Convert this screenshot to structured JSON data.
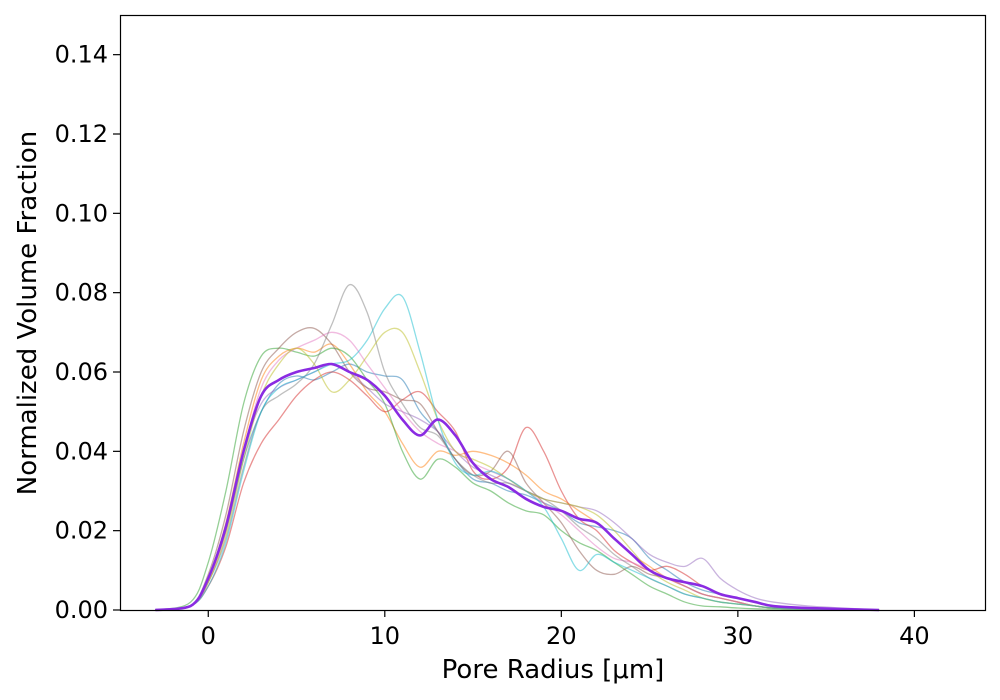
{
  "chart_data": {
    "type": "line",
    "title": "",
    "xlabel": "Pore Radius [μm]",
    "ylabel": "Normalized Volume Fraction",
    "xlim": [
      -5,
      44
    ],
    "ylim": [
      0,
      0.15
    ],
    "xticks": [
      0,
      10,
      20,
      30,
      40
    ],
    "yticks": [
      0.0,
      0.02,
      0.04,
      0.06,
      0.08,
      0.1,
      0.12,
      0.14
    ],
    "xtick_labels": [
      "0",
      "10",
      "20",
      "30",
      "40"
    ],
    "ytick_labels": [
      "0.00",
      "0.02",
      "0.04",
      "0.06",
      "0.08",
      "0.10",
      "0.12",
      "0.14"
    ],
    "grid": false,
    "legend": "none",
    "series": [
      {
        "color": "#1f77b4",
        "alpha": 0.5,
        "x": [
          -3,
          -1,
          0,
          1,
          2,
          3,
          4,
          5,
          6,
          7,
          8,
          9,
          10,
          11,
          12,
          13,
          14,
          15,
          16,
          17,
          18,
          19,
          20,
          21,
          22,
          23,
          24,
          25,
          26,
          27,
          28,
          29,
          30,
          31,
          32,
          34,
          38
        ],
        "y": [
          0,
          0.001,
          0.008,
          0.02,
          0.038,
          0.05,
          0.057,
          0.059,
          0.058,
          0.06,
          0.062,
          0.06,
          0.059,
          0.058,
          0.05,
          0.045,
          0.038,
          0.033,
          0.032,
          0.03,
          0.029,
          0.027,
          0.025,
          0.022,
          0.021,
          0.02,
          0.018,
          0.013,
          0.01,
          0.007,
          0.005,
          0.004,
          0.003,
          0.002,
          0.001,
          0.0005,
          0
        ]
      },
      {
        "color": "#ff7f0e",
        "alpha": 0.5,
        "x": [
          -3,
          -1,
          0,
          1,
          2,
          3,
          4,
          5,
          6,
          7,
          8,
          9,
          10,
          11,
          12,
          13,
          14,
          15,
          16,
          17,
          18,
          19,
          20,
          21,
          22,
          23,
          24,
          25,
          26,
          27,
          28,
          29,
          30,
          31,
          32,
          34,
          38
        ],
        "y": [
          0,
          0.001,
          0.008,
          0.022,
          0.042,
          0.058,
          0.064,
          0.066,
          0.065,
          0.067,
          0.062,
          0.055,
          0.05,
          0.042,
          0.036,
          0.04,
          0.039,
          0.04,
          0.039,
          0.037,
          0.034,
          0.03,
          0.028,
          0.025,
          0.022,
          0.018,
          0.014,
          0.011,
          0.008,
          0.006,
          0.004,
          0.003,
          0.002,
          0.001,
          0.0005,
          0.0002,
          0
        ]
      },
      {
        "color": "#2ca02c",
        "alpha": 0.5,
        "x": [
          -3,
          -1,
          0,
          1,
          2,
          3,
          4,
          5,
          6,
          7,
          8,
          9,
          10,
          11,
          12,
          13,
          14,
          15,
          16,
          17,
          18,
          19,
          20,
          21,
          22,
          23,
          24,
          25,
          26,
          27,
          28,
          29,
          30,
          31,
          32,
          34,
          38
        ],
        "y": [
          0,
          0.002,
          0.012,
          0.03,
          0.052,
          0.064,
          0.066,
          0.065,
          0.064,
          0.066,
          0.064,
          0.058,
          0.052,
          0.04,
          0.033,
          0.038,
          0.036,
          0.032,
          0.03,
          0.027,
          0.025,
          0.024,
          0.02,
          0.017,
          0.015,
          0.012,
          0.009,
          0.006,
          0.004,
          0.002,
          0.001,
          0.0008,
          0.0005,
          0.0003,
          0.0002,
          0.0001,
          0
        ]
      },
      {
        "color": "#d62728",
        "alpha": 0.5,
        "x": [
          -3,
          -1,
          0,
          1,
          2,
          3,
          4,
          5,
          6,
          7,
          8,
          9,
          10,
          11,
          12,
          13,
          14,
          15,
          16,
          17,
          18,
          19,
          20,
          21,
          22,
          23,
          24,
          25,
          26,
          27,
          28,
          29,
          30,
          31,
          32,
          34,
          38
        ],
        "y": [
          0,
          0.001,
          0.006,
          0.016,
          0.032,
          0.042,
          0.048,
          0.054,
          0.058,
          0.06,
          0.058,
          0.054,
          0.05,
          0.053,
          0.055,
          0.05,
          0.045,
          0.035,
          0.033,
          0.036,
          0.046,
          0.04,
          0.03,
          0.023,
          0.02,
          0.015,
          0.012,
          0.01,
          0.011,
          0.009,
          0.006,
          0.004,
          0.003,
          0.002,
          0.001,
          0.0005,
          0
        ]
      },
      {
        "color": "#9467bd",
        "alpha": 0.5,
        "x": [
          -3,
          -1,
          0,
          1,
          2,
          3,
          4,
          5,
          6,
          7,
          8,
          9,
          10,
          11,
          12,
          13,
          14,
          15,
          16,
          17,
          18,
          19,
          20,
          21,
          22,
          23,
          24,
          25,
          26,
          27,
          28,
          29,
          30,
          31,
          32,
          34,
          38
        ],
        "y": [
          0,
          0.001,
          0.008,
          0.02,
          0.04,
          0.052,
          0.056,
          0.058,
          0.06,
          0.062,
          0.06,
          0.056,
          0.052,
          0.05,
          0.048,
          0.045,
          0.04,
          0.036,
          0.034,
          0.032,
          0.03,
          0.028,
          0.027,
          0.026,
          0.025,
          0.022,
          0.018,
          0.014,
          0.012,
          0.011,
          0.013,
          0.008,
          0.005,
          0.003,
          0.002,
          0.001,
          0
        ]
      },
      {
        "color": "#8c564b",
        "alpha": 0.5,
        "x": [
          -3,
          -1,
          0,
          1,
          2,
          3,
          4,
          5,
          6,
          7,
          8,
          9,
          10,
          11,
          12,
          13,
          14,
          15,
          16,
          17,
          18,
          19,
          20,
          21,
          22,
          23,
          24,
          25,
          26,
          27,
          28,
          29,
          30,
          31,
          32,
          34,
          38
        ],
        "y": [
          0,
          0.001,
          0.009,
          0.024,
          0.045,
          0.06,
          0.066,
          0.07,
          0.071,
          0.067,
          0.06,
          0.056,
          0.055,
          0.053,
          0.052,
          0.045,
          0.038,
          0.034,
          0.035,
          0.04,
          0.032,
          0.027,
          0.022,
          0.015,
          0.01,
          0.009,
          0.011,
          0.009,
          0.008,
          0.006,
          0.004,
          0.003,
          0.002,
          0.001,
          0.0005,
          0.0002,
          0
        ]
      },
      {
        "color": "#e377c2",
        "alpha": 0.5,
        "x": [
          -3,
          -1,
          0,
          1,
          2,
          3,
          4,
          5,
          6,
          7,
          8,
          9,
          10,
          11,
          12,
          13,
          14,
          15,
          16,
          17,
          18,
          19,
          20,
          21,
          22,
          23,
          24,
          25,
          26,
          27,
          28,
          29,
          30,
          31,
          32,
          34,
          38
        ],
        "y": [
          0,
          0.001,
          0.007,
          0.02,
          0.04,
          0.056,
          0.063,
          0.066,
          0.068,
          0.07,
          0.068,
          0.062,
          0.056,
          0.05,
          0.045,
          0.042,
          0.04,
          0.037,
          0.035,
          0.033,
          0.03,
          0.027,
          0.024,
          0.02,
          0.016,
          0.013,
          0.012,
          0.01,
          0.008,
          0.006,
          0.004,
          0.003,
          0.002,
          0.001,
          0.0005,
          0.0002,
          0
        ]
      },
      {
        "color": "#7f7f7f",
        "alpha": 0.5,
        "x": [
          -3,
          -1,
          0,
          1,
          2,
          3,
          4,
          5,
          6,
          7,
          8,
          9,
          10,
          11,
          12,
          13,
          14,
          15,
          16,
          17,
          18,
          19,
          20,
          21,
          22,
          23,
          24,
          25,
          26,
          27,
          28,
          29,
          30,
          31,
          32,
          34,
          38
        ],
        "y": [
          0,
          0.001,
          0.007,
          0.018,
          0.036,
          0.05,
          0.054,
          0.057,
          0.062,
          0.072,
          0.082,
          0.075,
          0.06,
          0.052,
          0.046,
          0.044,
          0.038,
          0.034,
          0.032,
          0.032,
          0.03,
          0.028,
          0.025,
          0.021,
          0.018,
          0.014,
          0.011,
          0.008,
          0.006,
          0.004,
          0.003,
          0.002,
          0.0015,
          0.001,
          0.0005,
          0.0002,
          0
        ]
      },
      {
        "color": "#bcbd22",
        "alpha": 0.5,
        "x": [
          -3,
          -1,
          0,
          1,
          2,
          3,
          4,
          5,
          6,
          7,
          8,
          9,
          10,
          11,
          12,
          13,
          14,
          15,
          16,
          17,
          18,
          19,
          20,
          21,
          22,
          23,
          24,
          25,
          26,
          27,
          28,
          29,
          30,
          31,
          32,
          34,
          38
        ],
        "y": [
          0,
          0.001,
          0.007,
          0.019,
          0.038,
          0.054,
          0.062,
          0.066,
          0.062,
          0.055,
          0.058,
          0.064,
          0.07,
          0.07,
          0.06,
          0.048,
          0.04,
          0.038,
          0.036,
          0.033,
          0.03,
          0.028,
          0.027,
          0.026,
          0.024,
          0.02,
          0.015,
          0.01,
          0.007,
          0.005,
          0.003,
          0.002,
          0.0015,
          0.001,
          0.0005,
          0.0002,
          0
        ]
      },
      {
        "color": "#17becf",
        "alpha": 0.5,
        "x": [
          -3,
          -1,
          0,
          1,
          2,
          3,
          4,
          5,
          6,
          7,
          8,
          9,
          10,
          11,
          12,
          13,
          14,
          15,
          16,
          17,
          18,
          19,
          20,
          21,
          22,
          23,
          24,
          25,
          26,
          27,
          28,
          29,
          30,
          31,
          32,
          34,
          38
        ],
        "y": [
          0,
          0.001,
          0.006,
          0.017,
          0.035,
          0.05,
          0.056,
          0.058,
          0.06,
          0.062,
          0.063,
          0.068,
          0.076,
          0.079,
          0.065,
          0.048,
          0.037,
          0.034,
          0.035,
          0.033,
          0.03,
          0.026,
          0.018,
          0.01,
          0.014,
          0.012,
          0.01,
          0.008,
          0.006,
          0.004,
          0.003,
          0.002,
          0.0015,
          0.001,
          0.0005,
          0.0002,
          0
        ]
      },
      {
        "color": "#8a2be2",
        "alpha": 1.0,
        "width": 2.6,
        "x": [
          -3,
          -1,
          0,
          1,
          2,
          3,
          4,
          5,
          6,
          7,
          8,
          9,
          10,
          11,
          12,
          13,
          14,
          15,
          16,
          17,
          18,
          19,
          20,
          21,
          22,
          23,
          24,
          25,
          26,
          27,
          28,
          29,
          30,
          31,
          32,
          34,
          38
        ],
        "y": [
          0,
          0.001,
          0.008,
          0.021,
          0.04,
          0.054,
          0.058,
          0.06,
          0.061,
          0.062,
          0.06,
          0.058,
          0.054,
          0.048,
          0.044,
          0.048,
          0.044,
          0.037,
          0.033,
          0.031,
          0.028,
          0.026,
          0.025,
          0.023,
          0.022,
          0.018,
          0.014,
          0.01,
          0.008,
          0.007,
          0.006,
          0.004,
          0.003,
          0.002,
          0.001,
          0.0005,
          0
        ]
      }
    ]
  }
}
